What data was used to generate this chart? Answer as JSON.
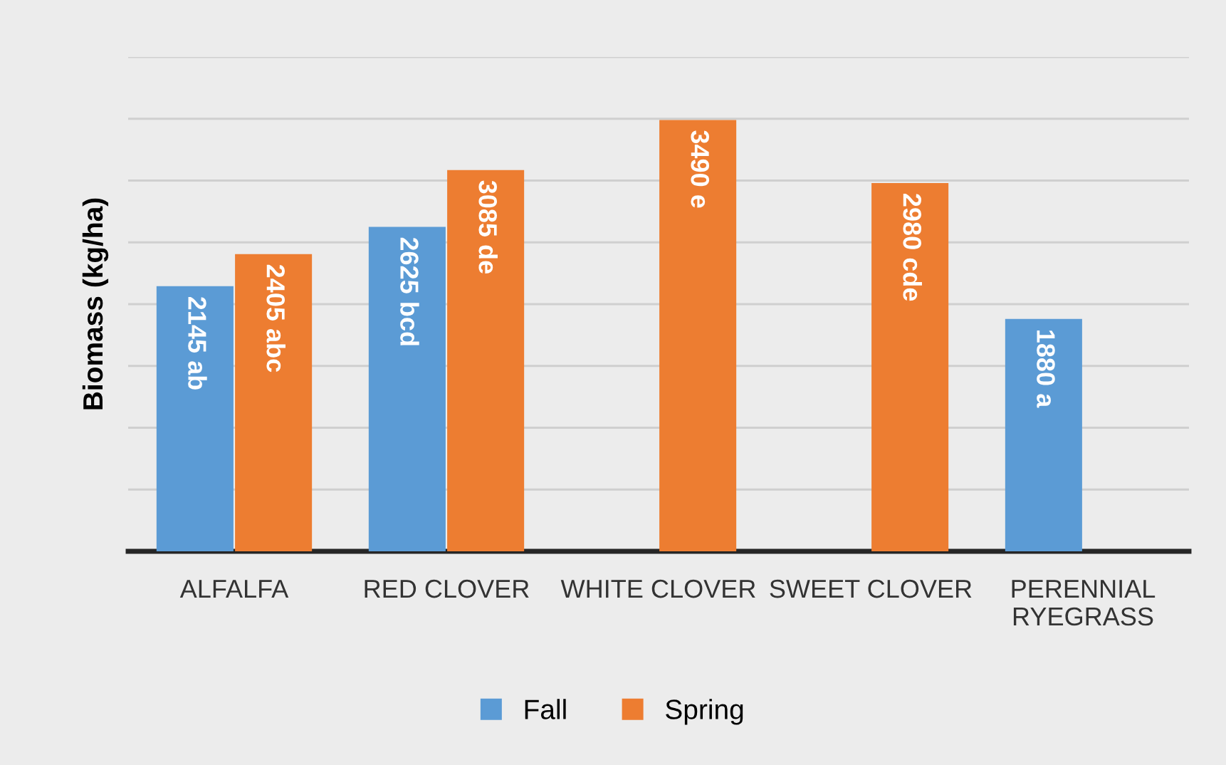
{
  "chart_data": {
    "type": "bar",
    "ylabel": "Biomass (kg/ha)",
    "categories": [
      "ALFALFA",
      "RED CLOVER",
      "WHITE CLOVER",
      "SWEET CLOVER",
      "PERENNIAL\nRYEGRASS"
    ],
    "series": [
      {
        "name": "Fall",
        "color": "#5b9bd5",
        "values": [
          2145,
          2625,
          null,
          null,
          1880
        ],
        "value_labels": [
          "2145 ab",
          "2625 bcd",
          null,
          null,
          "1880 a"
        ]
      },
      {
        "name": "Spring",
        "color": "#ed7d31",
        "values": [
          2405,
          3085,
          3490,
          2980,
          null
        ],
        "value_labels": [
          "2405 abc",
          "3085 de",
          "3490 e",
          "2980 cde",
          null
        ]
      }
    ],
    "ylim": [
      0,
      4000
    ],
    "yticks": [
      {
        "value": 0,
        "label": null
      },
      {
        "value": 500,
        "label": null
      },
      {
        "value": 1000,
        "label": null
      },
      {
        "value": 1500,
        "label": null
      },
      {
        "value": 2000,
        "label": null
      },
      {
        "value": 2500,
        "label": null
      },
      {
        "value": 3000,
        "label": null
      },
      {
        "value": 3500,
        "label": null
      },
      {
        "value": 4000,
        "label": null
      }
    ],
    "tick_labels": "x",
    "grid": "y",
    "legend": "bottom"
  }
}
